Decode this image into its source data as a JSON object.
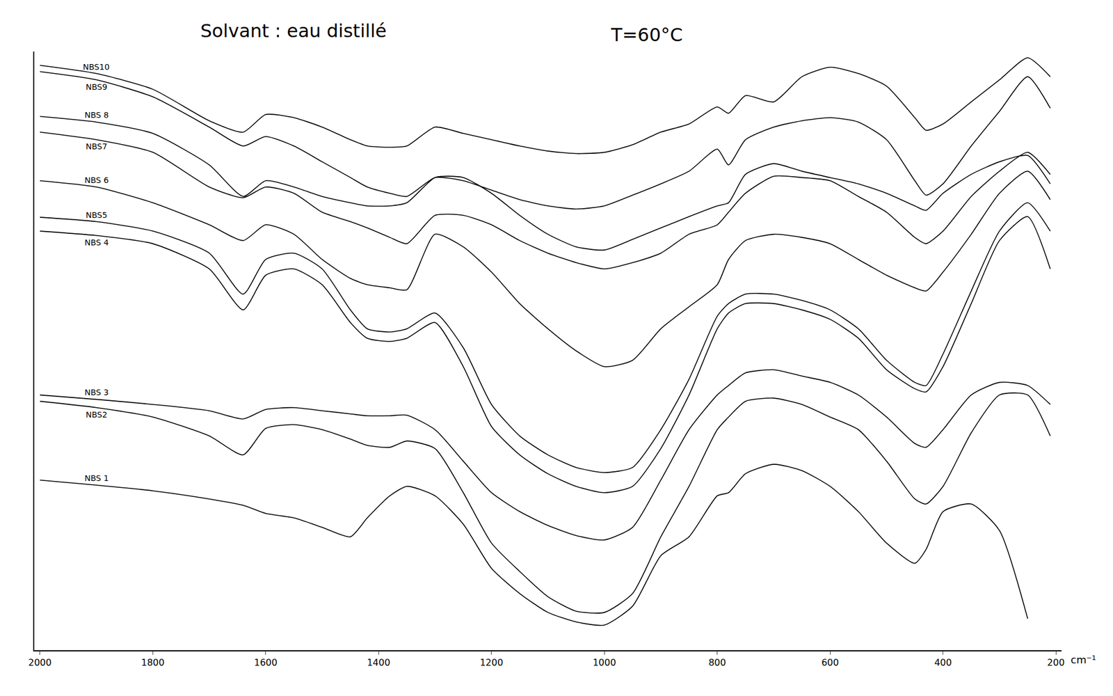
{
  "chart_data": {
    "type": "line",
    "title": "Solvant : eau distillé",
    "annotations": [
      "T=60°C"
    ],
    "x_label": "cm⁻¹",
    "x": [
      2000,
      1900,
      1800,
      1700,
      1640,
      1600,
      1550,
      1500,
      1450,
      1420,
      1380,
      1350,
      1300,
      1250,
      1200,
      1150,
      1100,
      1050,
      1000,
      950,
      900,
      850,
      800,
      780,
      750,
      700,
      650,
      600,
      550,
      500,
      450,
      430,
      400,
      350,
      300,
      250,
      210
    ],
    "xlim": [
      2010,
      190
    ],
    "xticks": [
      2000,
      1800,
      1600,
      1400,
      1200,
      1000,
      800,
      600,
      400,
      200
    ],
    "ylim": [
      950,
      0
    ],
    "tick_labels": "x",
    "grid": false,
    "color": "#000000",
    "series": [
      {
        "name": "NBS10",
        "values": [
          22,
          35,
          60,
          110,
          128,
          100,
          105,
          120,
          140,
          150,
          152,
          150,
          120,
          130,
          140,
          150,
          158,
          162,
          160,
          148,
          128,
          115,
          88,
          98,
          70,
          80,
          40,
          25,
          35,
          55,
          105,
          125,
          115,
          80,
          45,
          10,
          40
        ]
      },
      {
        "name": "NBS9",
        "values": [
          32,
          45,
          72,
          120,
          150,
          135,
          150,
          175,
          200,
          215,
          225,
          230,
          200,
          205,
          220,
          235,
          245,
          250,
          245,
          228,
          210,
          190,
          155,
          180,
          140,
          120,
          110,
          105,
          112,
          140,
          205,
          228,
          210,
          150,
          95,
          40,
          90
        ]
      },
      {
        "name": "NBS 8",
        "values": [
          103,
          112,
          130,
          180,
          230,
          205,
          215,
          230,
          240,
          245,
          245,
          240,
          200,
          200,
          225,
          260,
          290,
          310,
          315,
          298,
          280,
          262,
          245,
          240,
          195,
          178,
          190,
          200,
          210,
          225,
          245,
          252,
          225,
          195,
          175,
          165,
          210
        ]
      },
      {
        "name": "NBS7",
        "values": [
          128,
          140,
          160,
          215,
          232,
          215,
          225,
          255,
          270,
          280,
          295,
          305,
          260,
          260,
          275,
          300,
          320,
          335,
          345,
          335,
          320,
          290,
          275,
          255,
          225,
          198,
          200,
          205,
          230,
          255,
          295,
          305,
          285,
          230,
          190,
          160,
          195
        ]
      },
      {
        "name": "NBS 6",
        "values": [
          205,
          215,
          240,
          275,
          300,
          275,
          290,
          330,
          360,
          370,
          375,
          378,
          290,
          310,
          350,
          400,
          440,
          475,
          500,
          490,
          440,
          405,
          370,
          330,
          300,
          290,
          295,
          305,
          330,
          355,
          375,
          380,
          350,
          290,
          225,
          190,
          235
        ]
      },
      {
        "name": "NBS5",
        "values": [
          263,
          270,
          285,
          320,
          385,
          330,
          320,
          345,
          410,
          440,
          445,
          440,
          415,
          470,
          560,
          610,
          640,
          660,
          668,
          660,
          600,
          520,
          420,
          400,
          385,
          385,
          395,
          410,
          440,
          490,
          525,
          530,
          480,
          380,
          285,
          240,
          285
        ]
      },
      {
        "name": "NBS 4",
        "values": [
          285,
          292,
          305,
          345,
          410,
          355,
          345,
          370,
          430,
          455,
          460,
          455,
          430,
          500,
          595,
          640,
          670,
          690,
          700,
          690,
          630,
          545,
          440,
          415,
          400,
          400,
          410,
          425,
          455,
          505,
          535,
          540,
          500,
          400,
          300,
          262,
          345
        ]
      },
      {
        "name": "NBS 3",
        "values": [
          545,
          552,
          560,
          570,
          583,
          568,
          565,
          570,
          575,
          578,
          578,
          577,
          600,
          650,
          700,
          730,
          752,
          768,
          775,
          755,
          680,
          600,
          545,
          530,
          510,
          505,
          515,
          525,
          545,
          580,
          622,
          628,
          600,
          545,
          525,
          530,
          560
        ]
      },
      {
        "name": "NBS2",
        "values": [
          555,
          565,
          580,
          610,
          640,
          598,
          592,
          600,
          615,
          625,
          628,
          618,
          630,
          700,
          780,
          825,
          865,
          888,
          890,
          860,
          770,
          690,
          600,
          580,
          555,
          550,
          560,
          580,
          600,
          650,
          710,
          718,
          690,
          605,
          545,
          545,
          610
        ]
      },
      {
        "name": "NBS 1",
        "values": [
          680,
          688,
          697,
          710,
          720,
          733,
          740,
          755,
          770,
          740,
          705,
          690,
          705,
          750,
          820,
          860,
          890,
          905,
          910,
          880,
          800,
          770,
          705,
          700,
          670,
          655,
          665,
          690,
          730,
          780,
          812,
          790,
          730,
          718,
          760,
          900,
          null
        ]
      }
    ]
  }
}
